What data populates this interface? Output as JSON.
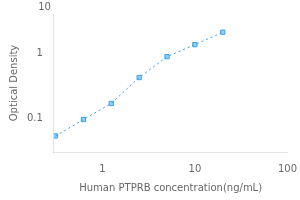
{
  "chart_data": {
    "type": "line",
    "x": [
      0.3125,
      0.625,
      1.25,
      2.5,
      5.0,
      10.0,
      20.0
    ],
    "values": [
      0.053,
      0.095,
      0.168,
      0.42,
      0.88,
      1.35,
      2.1
    ],
    "xlabel": "Human PTPRB concentration(ng/mL)",
    "ylabel": "Optical Density",
    "xlim": [
      0.3,
      100
    ],
    "ylim": [
      0.03,
      4
    ],
    "xticks": [
      1,
      10,
      100
    ],
    "yticks": [
      0.1,
      1
    ],
    "log": true,
    "grid": false,
    "marker": "square",
    "line_style": "dotted",
    "annotations": [
      "10"
    ]
  }
}
